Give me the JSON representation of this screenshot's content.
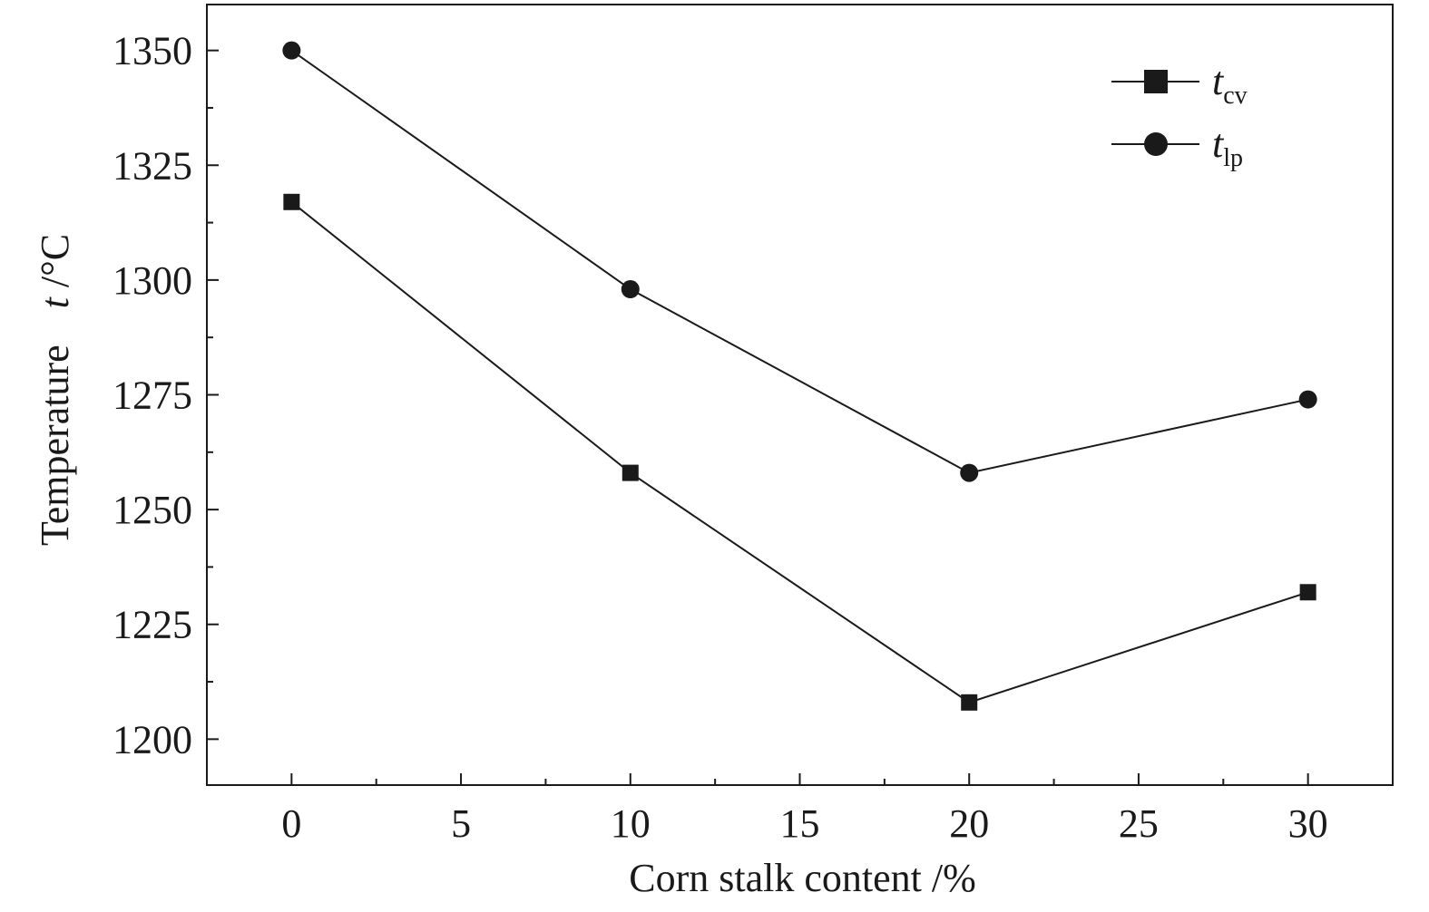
{
  "chart_data": {
    "type": "line",
    "xlabel": "Corn stalk content /%",
    "ylabel": {
      "prefix": "Temperature",
      "var": "t",
      "unit": " /°C"
    },
    "xlim": [
      -2.5,
      32.5
    ],
    "ylim": [
      1190,
      1360
    ],
    "xticks": [
      0,
      5,
      10,
      15,
      20,
      25,
      30
    ],
    "xtick_labels": [
      "0",
      "5",
      "10",
      "15",
      "20",
      "25",
      "30"
    ],
    "yticks": [
      1200,
      1225,
      1250,
      1275,
      1300,
      1325,
      1350
    ],
    "ytick_labels": [
      "1200",
      "1225",
      "1250",
      "1275",
      "1300",
      "1325",
      "1350"
    ],
    "grid": false,
    "legend_position": "top-right",
    "x": [
      0,
      10,
      20,
      30
    ],
    "series": [
      {
        "name_main": "t",
        "name_sub": "cv",
        "marker": "square",
        "values": [
          1317,
          1258,
          1208,
          1232
        ]
      },
      {
        "name_main": "t",
        "name_sub": "lp",
        "marker": "circle",
        "values": [
          1350,
          1298,
          1258,
          1274
        ]
      }
    ],
    "colors": {
      "line": "#1a1a1a",
      "marker": "#1a1a1a",
      "axis": "#1a1a1a"
    }
  }
}
